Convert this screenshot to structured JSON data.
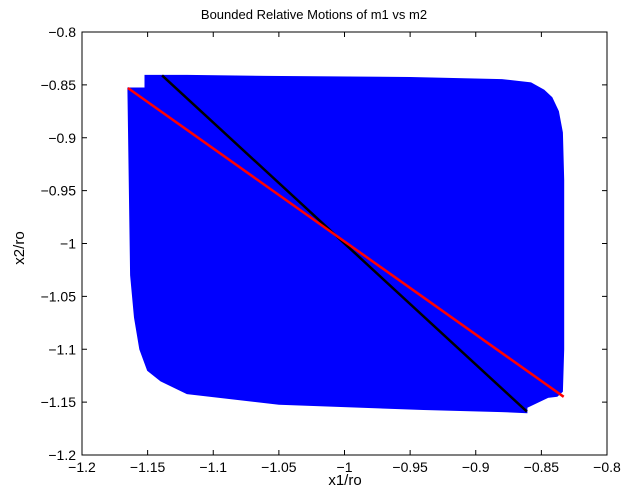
{
  "chart_data": {
    "type": "line",
    "title": "Bounded Relative Motions of m1 vs m2",
    "xlabel": "x1/ro",
    "ylabel": "x2/ro",
    "xlim": [
      -1.2,
      -0.8
    ],
    "ylim": [
      -1.2,
      -0.8
    ],
    "xticks": [
      -1.2,
      -1.15,
      -1.1,
      -1.05,
      -1,
      -0.95,
      -0.9,
      -0.85,
      -0.8
    ],
    "yticks": [
      -0.8,
      -0.85,
      -0.9,
      -0.95,
      -1,
      -1.05,
      -1.1,
      -1.15,
      -1.2
    ],
    "xtick_labels": [
      "−1.2",
      "−1.15",
      "−1.1",
      "−1.05",
      "−1",
      "−0.95",
      "−0.9",
      "−0.85",
      "−0.8"
    ],
    "ytick_labels": [
      "−0.8",
      "−0.85",
      "−0.9",
      "−0.95",
      "−1",
      "−1.05",
      "−1.1",
      "−1.15",
      "−1.2"
    ],
    "grid": false,
    "series": [
      {
        "color": "#0000ff",
        "fill": true,
        "x": [
          -1.165,
          -1.152,
          -1.152,
          -1.14,
          -1.12,
          -1.06,
          -0.95,
          -0.88,
          -0.858,
          -0.848,
          -0.842,
          -0.837,
          -0.834,
          -0.833,
          -0.833,
          -0.834,
          -0.838,
          -0.845,
          -0.861,
          -0.861,
          -0.88,
          -0.94,
          -1.05,
          -1.12,
          -1.14,
          -1.15,
          -1.156,
          -1.16,
          -1.163,
          -1.165
        ],
        "y": [
          -0.853,
          -0.853,
          -0.841,
          -0.841,
          -0.841,
          -0.842,
          -0.843,
          -0.845,
          -0.848,
          -0.855,
          -0.862,
          -0.875,
          -0.895,
          -0.94,
          -1.1,
          -1.14,
          -1.1445,
          -1.1455,
          -1.155,
          -1.16,
          -1.159,
          -1.157,
          -1.152,
          -1.142,
          -1.13,
          -1.12,
          -1.1,
          -1.07,
          -1.03,
          -0.853
        ]
      },
      {
        "color": "#000000",
        "x": [
          -1.139,
          -0.861
        ],
        "y": [
          -0.841,
          -1.159
        ]
      },
      {
        "color": "#ff0000",
        "x": [
          -1.165,
          -0.833
        ],
        "y": [
          -0.853,
          -1.145
        ]
      }
    ]
  }
}
